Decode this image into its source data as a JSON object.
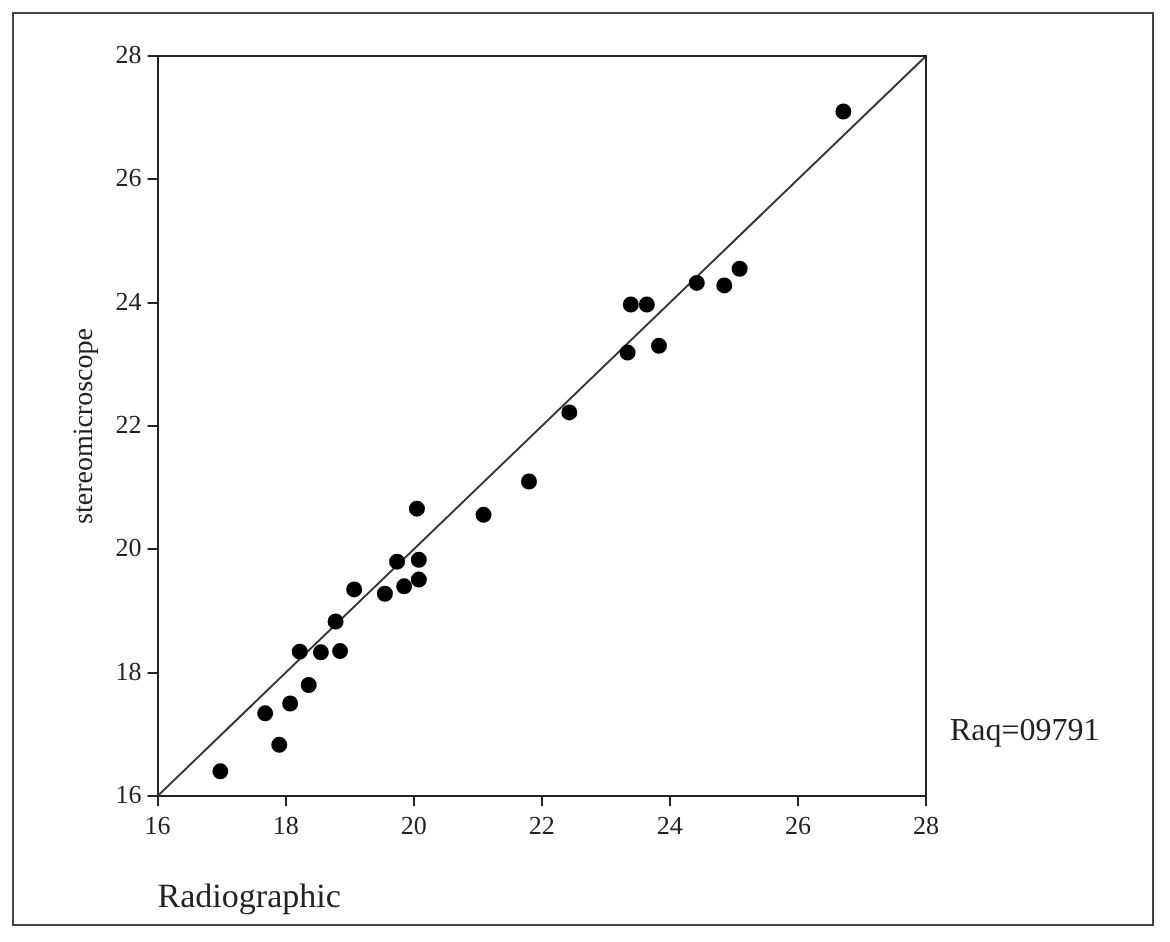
{
  "chart_data": {
    "type": "scatter",
    "xlabel": "Radiographic",
    "ylabel": "stereomicroscope",
    "xlim": [
      16,
      28
    ],
    "ylim": [
      16,
      28
    ],
    "xticks": [
      16,
      18,
      20,
      22,
      24,
      26,
      28
    ],
    "yticks": [
      16,
      18,
      20,
      22,
      24,
      26,
      28
    ],
    "grid": false,
    "legend": false,
    "marker": "circle",
    "annotations": [
      "Raq=09791"
    ],
    "series": [
      {
        "color": "#000000",
        "x": [
          16.98,
          17.68,
          17.9,
          18.07,
          18.36,
          18.22,
          18.55,
          18.85,
          18.78,
          19.07,
          19.55,
          19.74,
          19.85,
          20.08,
          20.08,
          20.05,
          21.09,
          21.8,
          22.43,
          23.34,
          23.39,
          23.64,
          23.83,
          24.42,
          24.85,
          25.09,
          26.71
        ],
        "values": [
          16.4,
          17.34,
          16.83,
          17.5,
          17.8,
          18.34,
          18.33,
          18.35,
          18.83,
          19.35,
          19.28,
          19.8,
          19.4,
          19.51,
          19.83,
          20.66,
          20.56,
          21.1,
          22.22,
          23.19,
          23.97,
          23.97,
          23.3,
          24.32,
          24.28,
          24.55,
          27.1
        ]
      },
      {
        "type": "line",
        "color": "#333333",
        "x": [
          16,
          28
        ],
        "values": [
          16,
          28
        ],
        "marker": "none",
        "line_style": "solid"
      }
    ]
  }
}
